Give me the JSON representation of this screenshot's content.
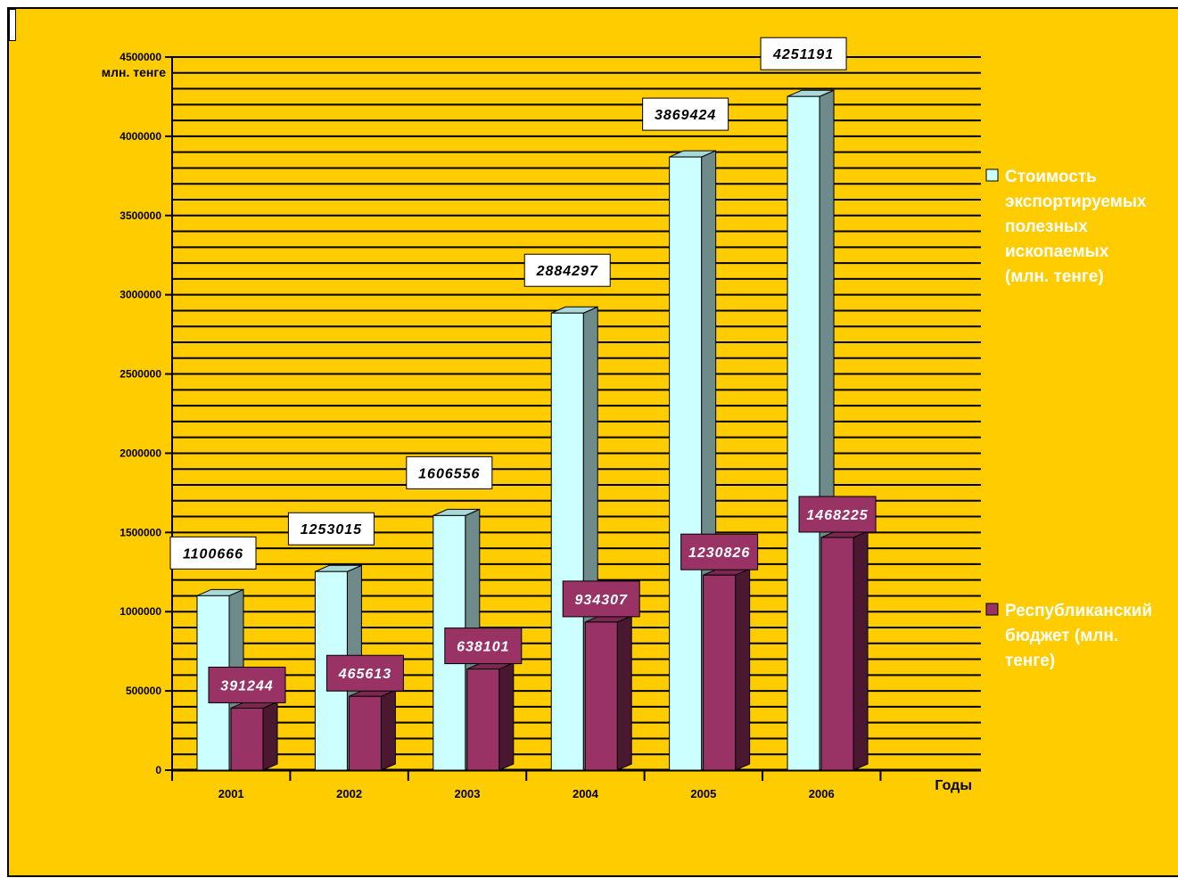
{
  "chart_data": {
    "type": "bar",
    "categories": [
      "2001",
      "2002",
      "2003",
      "2004",
      "2005",
      "2006"
    ],
    "series": [
      {
        "name": "Стоимость экспортируемых полезных ископаемых (млн. тенге)",
        "values": [
          1100666,
          1253015,
          1606556,
          2884297,
          3869424,
          4251191
        ],
        "labels": [
          "1100666",
          "1253015",
          "1606556",
          "2884297",
          "3869424",
          "4251191"
        ],
        "color": "#CCFFFF"
      },
      {
        "name": "Республиканский бюджет (млн. тенге)",
        "values": [
          391244,
          465613,
          638101,
          934307,
          1230826,
          1468225
        ],
        "labels": [
          "391244",
          "465613",
          "638101",
          "934307",
          "1230826",
          "1468225"
        ],
        "color": "#993366"
      }
    ],
    "y_ticks": [
      "0",
      "500000",
      "1000000",
      "1500000",
      "2000000",
      "2500000",
      "3000000",
      "3500000",
      "4000000",
      "4500000"
    ],
    "ylim": [
      0,
      4500000
    ],
    "ylabel": "млн. тенге",
    "xlabel": "Годы",
    "grid": true,
    "legend_position": "right",
    "legend_lines": [
      [
        "Стоимость",
        "экспортируемых",
        "полезных",
        "ископаемых",
        "(млн. тенге)"
      ],
      [
        "Республиканский",
        "бюджет (млн.",
        "тенге)"
      ]
    ],
    "colors": {
      "background": "#FFCC00",
      "series1": "#CCFFFF",
      "series2": "#993366"
    }
  }
}
